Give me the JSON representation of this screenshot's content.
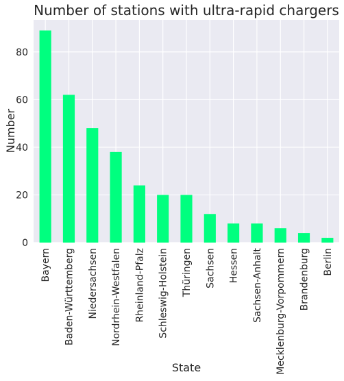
{
  "chart_data": {
    "type": "bar",
    "title": "Number of stations with ultra-rapid chargers",
    "xlabel": "State",
    "ylabel": "Number",
    "categories": [
      "Bayern",
      "Baden-Württemberg",
      "Niedersachsen",
      "Nordrhein-Westfalen",
      "Rheinland-Pfalz",
      "Schleswig-Holstein",
      "Thüringen",
      "Sachsen",
      "Hessen",
      "Sachsen-Anhalt",
      "Mecklenburg-Vorpommern",
      "Brandenburg",
      "Berlin"
    ],
    "values": [
      89,
      62,
      48,
      38,
      24,
      20,
      20,
      12,
      8,
      8,
      6,
      4,
      2
    ],
    "yticks": [
      0,
      20,
      40,
      60,
      80
    ],
    "ylim": [
      0,
      93.45
    ],
    "grid": true,
    "legend": "none",
    "colors": {
      "bar": "#00ff7f",
      "plot_background": "#eaeaf2",
      "grid": "#ffffff",
      "text": "#262626"
    }
  }
}
